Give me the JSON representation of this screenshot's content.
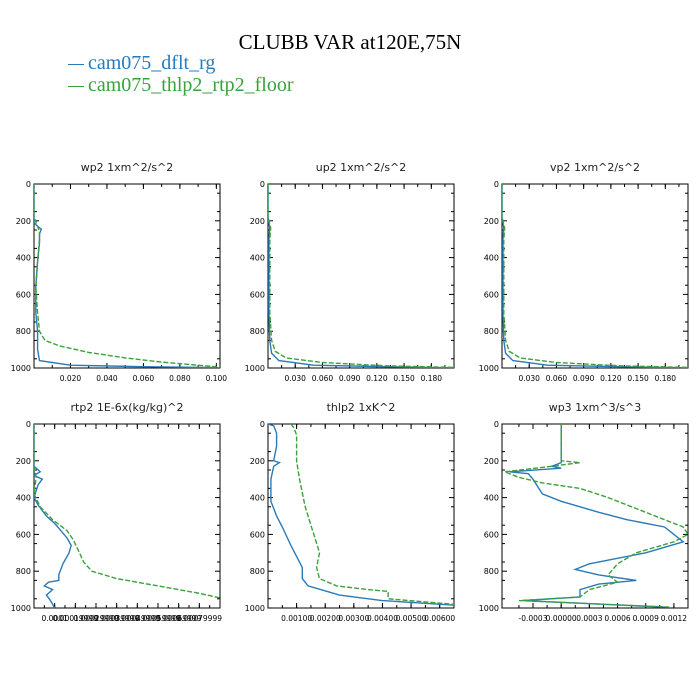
{
  "title": "CLUBB VAR at120E,75N",
  "legend": [
    {
      "name": "cam075_dflt_rg",
      "color": "#2a7ab8"
    },
    {
      "name": "cam075_thlp2_rtp2_floor",
      "color": "#3aa23a"
    }
  ],
  "chart_data": [
    {
      "type": "line",
      "title": "wp2   1xm^2/s^2",
      "ylim": [
        1000,
        0
      ],
      "yticks": [
        0,
        200,
        400,
        600,
        800,
        1000
      ],
      "xlim": [
        0.0,
        0.102
      ],
      "xticks": [
        0.02,
        0.04,
        0.06,
        0.08,
        0.1
      ],
      "xtick_labels": [
        "0.020",
        "0.040",
        "0.060",
        "0.080",
        "0.100"
      ],
      "series": [
        {
          "name": "cam075_dflt_rg",
          "points": [
            [
              0.0,
              0
            ],
            [
              0.0,
              180
            ],
            [
              0.0,
              210
            ],
            [
              0.002,
              230
            ],
            [
              0.004,
              245
            ],
            [
              0.003,
              270
            ],
            [
              0.003,
              320
            ],
            [
              0.002,
              420
            ],
            [
              0.001,
              560
            ],
            [
              0.001,
              700
            ],
            [
              0.002,
              800
            ],
            [
              0.002,
              900
            ],
            [
              0.003,
              960
            ],
            [
              0.02,
              985
            ],
            [
              0.06,
              993
            ],
            [
              0.1,
              998
            ]
          ]
        },
        {
          "name": "cam075_thlp2_rtp2_floor",
          "points": [
            [
              0.0,
              0
            ],
            [
              0.0,
              180
            ],
            [
              0.002,
              230
            ],
            [
              0.003,
              260
            ],
            [
              0.003,
              300
            ],
            [
              0.002,
              420
            ],
            [
              0.001,
              560
            ],
            [
              0.002,
              700
            ],
            [
              0.003,
              800
            ],
            [
              0.006,
              850
            ],
            [
              0.014,
              880
            ],
            [
              0.03,
              915
            ],
            [
              0.05,
              945
            ],
            [
              0.07,
              968
            ],
            [
              0.09,
              985
            ],
            [
              0.102,
              995
            ]
          ]
        }
      ]
    },
    {
      "type": "line",
      "title": "up2   1xm^2/s^2",
      "ylim": [
        1000,
        0
      ],
      "yticks": [
        0,
        200,
        400,
        600,
        800,
        1000
      ],
      "xlim": [
        0.0,
        0.205
      ],
      "xticks": [
        0.03,
        0.06,
        0.09,
        0.12,
        0.15,
        0.18
      ],
      "xtick_labels": [
        "0.030",
        "0.060",
        "0.090",
        "0.120",
        "0.150",
        "0.180"
      ],
      "series": [
        {
          "name": "cam075_dflt_rg",
          "points": [
            [
              0.0,
              0
            ],
            [
              0.0,
              180
            ],
            [
              0.002,
              240
            ],
            [
              0.001,
              300
            ],
            [
              0.001,
              500
            ],
            [
              0.001,
              700
            ],
            [
              0.002,
              850
            ],
            [
              0.004,
              920
            ],
            [
              0.012,
              960
            ],
            [
              0.05,
              985
            ],
            [
              0.15,
              995
            ],
            [
              0.205,
              999
            ]
          ]
        },
        {
          "name": "cam075_thlp2_rtp2_floor",
          "points": [
            [
              0.0,
              0
            ],
            [
              0.0,
              180
            ],
            [
              0.003,
              240
            ],
            [
              0.002,
              300
            ],
            [
              0.002,
              500
            ],
            [
              0.002,
              700
            ],
            [
              0.004,
              850
            ],
            [
              0.008,
              910
            ],
            [
              0.02,
              945
            ],
            [
              0.06,
              970
            ],
            [
              0.13,
              988
            ],
            [
              0.205,
              997
            ]
          ]
        }
      ]
    },
    {
      "type": "line",
      "title": "vp2   1xm^2/s^2",
      "ylim": [
        1000,
        0
      ],
      "yticks": [
        0,
        200,
        400,
        600,
        800,
        1000
      ],
      "xlim": [
        0.0,
        0.205
      ],
      "xticks": [
        0.03,
        0.06,
        0.09,
        0.12,
        0.15,
        0.18
      ],
      "xtick_labels": [
        "0.030",
        "0.060",
        "0.090",
        "0.120",
        "0.150",
        "0.180"
      ],
      "series": [
        {
          "name": "cam075_dflt_rg",
          "points": [
            [
              0.0,
              0
            ],
            [
              0.0,
              180
            ],
            [
              0.002,
              240
            ],
            [
              0.001,
              300
            ],
            [
              0.001,
              500
            ],
            [
              0.001,
              700
            ],
            [
              0.002,
              850
            ],
            [
              0.004,
              920
            ],
            [
              0.012,
              960
            ],
            [
              0.05,
              985
            ],
            [
              0.15,
              995
            ],
            [
              0.205,
              999
            ]
          ]
        },
        {
          "name": "cam075_thlp2_rtp2_floor",
          "points": [
            [
              0.0,
              0
            ],
            [
              0.0,
              180
            ],
            [
              0.003,
              240
            ],
            [
              0.002,
              300
            ],
            [
              0.002,
              500
            ],
            [
              0.002,
              700
            ],
            [
              0.004,
              850
            ],
            [
              0.008,
              910
            ],
            [
              0.02,
              945
            ],
            [
              0.06,
              970
            ],
            [
              0.13,
              988
            ],
            [
              0.205,
              997
            ]
          ]
        }
      ]
    },
    {
      "type": "line",
      "title": "rtp2   1E-6x(kg/kg)^2",
      "ylim": [
        1000,
        0
      ],
      "yticks": [
        0,
        200,
        400,
        600,
        800,
        1000
      ],
      "xlim": [
        0.0,
        0.0009
      ],
      "xticks": [
        0.0001,
        0.0002,
        0.0003,
        0.0004,
        0.0005,
        0.0006,
        0.0007,
        0.0008
      ],
      "xtick_labels": [
        "0.0001",
        "0.00019999",
        "0.00029999",
        "0.00039999",
        "0.00049999",
        "0.00059999",
        "0.00069999",
        "0.00079999"
      ],
      "series": [
        {
          "name": "cam075_dflt_rg",
          "points": [
            [
              0.0,
              0
            ],
            [
              0.0,
              230
            ],
            [
              3e-05,
              260
            ],
            [
              0.0,
              280
            ],
            [
              4e-05,
              300
            ],
            [
              2e-05,
              330
            ],
            [
              0.0,
              400
            ],
            [
              2e-05,
              440
            ],
            [
              6e-05,
              500
            ],
            [
              0.0001,
              540
            ],
            [
              0.00013,
              580
            ],
            [
              0.00016,
              620
            ],
            [
              0.00018,
              660
            ],
            [
              0.00017,
              700
            ],
            [
              0.00014,
              760
            ],
            [
              0.00012,
              820
            ],
            [
              0.00012,
              850
            ],
            [
              7e-05,
              860
            ],
            [
              5e-05,
              880
            ],
            [
              9e-05,
              900
            ],
            [
              6e-05,
              930
            ],
            [
              8e-05,
              960
            ],
            [
              0.0001,
              1000
            ]
          ]
        },
        {
          "name": "cam075_thlp2_rtp2_floor",
          "points": [
            [
              0.0,
              0
            ],
            [
              0.0,
              230
            ],
            [
              1e-05,
              290
            ],
            [
              0.0,
              380
            ],
            [
              3e-05,
              450
            ],
            [
              9e-05,
              520
            ],
            [
              0.00016,
              580
            ],
            [
              0.00019,
              630
            ],
            [
              0.00022,
              700
            ],
            [
              0.00024,
              750
            ],
            [
              0.00028,
              800
            ],
            [
              0.0004,
              840
            ],
            [
              0.0006,
              880
            ],
            [
              0.0008,
              920
            ],
            [
              0.0009,
              945
            ],
            [
              0.0009,
              960
            ]
          ]
        }
      ]
    },
    {
      "type": "line",
      "title": "thlp2   1xK^2",
      "ylim": [
        1000,
        0
      ],
      "yticks": [
        0,
        200,
        400,
        600,
        800,
        1000
      ],
      "xlim": [
        0.0,
        0.0065
      ],
      "xticks": [
        0.001,
        0.002,
        0.003,
        0.004,
        0.005,
        0.006
      ],
      "xtick_labels": [
        "0.00100",
        "0.00200",
        "0.00300",
        "0.00400",
        "0.00500",
        "0.00600"
      ],
      "series": [
        {
          "name": "cam075_dflt_rg",
          "points": [
            [
              0.0,
              0
            ],
            [
              0.0002,
              10
            ],
            [
              0.0003,
              50
            ],
            [
              0.0003,
              120
            ],
            [
              0.0002,
              200
            ],
            [
              0.0004,
              210
            ],
            [
              0.0002,
              230
            ],
            [
              0.0001,
              300
            ],
            [
              0.0001,
              420
            ],
            [
              0.0003,
              500
            ],
            [
              0.0005,
              560
            ],
            [
              0.0008,
              660
            ],
            [
              0.0012,
              780
            ],
            [
              0.0012,
              840
            ],
            [
              0.0014,
              880
            ],
            [
              0.0025,
              930
            ],
            [
              0.004,
              960
            ],
            [
              0.0065,
              985
            ]
          ]
        },
        {
          "name": "cam075_thlp2_rtp2_floor",
          "points": [
            [
              0.0008,
              0
            ],
            [
              0.0009,
              20
            ],
            [
              0.001,
              60
            ],
            [
              0.001,
              200
            ],
            [
              0.0011,
              300
            ],
            [
              0.0013,
              450
            ],
            [
              0.0016,
              600
            ],
            [
              0.0018,
              700
            ],
            [
              0.0017,
              780
            ],
            [
              0.0018,
              840
            ],
            [
              0.0024,
              880
            ],
            [
              0.0035,
              900
            ],
            [
              0.0042,
              910
            ],
            [
              0.0042,
              950
            ],
            [
              0.0065,
              980
            ]
          ]
        }
      ]
    },
    {
      "type": "line",
      "title": "wp3   1xm^3/s^3",
      "ylim": [
        1000,
        0
      ],
      "yticks": [
        0,
        200,
        400,
        600,
        800,
        1000
      ],
      "xlim": [
        -0.00063,
        0.00135
      ],
      "xticks": [
        -0.0003,
        0.0,
        0.0003,
        0.0006,
        0.0009,
        0.0012
      ],
      "xtick_labels": [
        "-0.0003",
        "0.00000",
        "0.0003",
        "0.0006",
        "0.0009",
        "0.0012"
      ],
      "series": [
        {
          "name": "cam075_dflt_rg",
          "points": [
            [
              0.0,
              0
            ],
            [
              0.0,
              200
            ],
            [
              0.0,
              210
            ],
            [
              -0.0001,
              230
            ],
            [
              0.0,
              240
            ],
            [
              -0.00055,
              260
            ],
            [
              -0.00035,
              270
            ],
            [
              -0.0003,
              300
            ],
            [
              -0.00025,
              340
            ],
            [
              -0.0002,
              380
            ],
            [
              0.0,
              420
            ],
            [
              0.0004,
              480
            ],
            [
              0.0007,
              520
            ],
            [
              0.0011,
              560
            ],
            [
              0.0012,
              600
            ],
            [
              0.0013,
              640
            ],
            [
              0.0009,
              700
            ],
            [
              0.0003,
              760
            ],
            [
              0.00015,
              790
            ],
            [
              0.0004,
              820
            ],
            [
              0.0008,
              850
            ],
            [
              0.0004,
              870
            ],
            [
              0.0002,
              900
            ],
            [
              0.0002,
              940
            ],
            [
              -0.0004,
              960
            ],
            [
              0.0011,
              995
            ]
          ]
        },
        {
          "name": "cam075_thlp2_rtp2_floor",
          "points": [
            [
              0.0,
              0
            ],
            [
              0.0,
              200
            ],
            [
              0.0002,
              210
            ],
            [
              -0.0001,
              230
            ],
            [
              -0.0006,
              260
            ],
            [
              -0.00045,
              290
            ],
            [
              -0.0002,
              320
            ],
            [
              0.0002,
              350
            ],
            [
              0.0005,
              400
            ],
            [
              0.0008,
              460
            ],
            [
              0.0011,
              520
            ],
            [
              0.0013,
              560
            ],
            [
              0.00135,
              600
            ],
            [
              0.0012,
              640
            ],
            [
              0.0008,
              700
            ],
            [
              0.0006,
              760
            ],
            [
              0.0005,
              820
            ],
            [
              0.0006,
              860
            ],
            [
              0.0003,
              900
            ],
            [
              0.0002,
              940
            ],
            [
              -0.00045,
              960
            ],
            [
              0.00115,
              995
            ]
          ]
        }
      ]
    }
  ]
}
